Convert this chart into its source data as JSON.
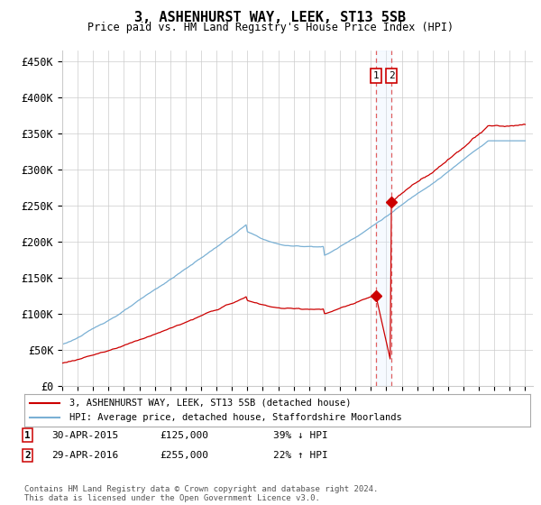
{
  "title": "3, ASHENHURST WAY, LEEK, ST13 5SB",
  "subtitle": "Price paid vs. HM Land Registry's House Price Index (HPI)",
  "ylabel_ticks": [
    "£0",
    "£50K",
    "£100K",
    "£150K",
    "£200K",
    "£250K",
    "£300K",
    "£350K",
    "£400K",
    "£450K"
  ],
  "ytick_values": [
    0,
    50000,
    100000,
    150000,
    200000,
    250000,
    300000,
    350000,
    400000,
    450000
  ],
  "ylim": [
    0,
    465000
  ],
  "xlim_start": 1995.0,
  "xlim_end": 2025.5,
  "transaction1_x": 2015.33,
  "transaction1_y": 125000,
  "transaction2_x": 2016.33,
  "transaction2_y": 255000,
  "transaction1_label": "30-APR-2015",
  "transaction1_price": "£125,000",
  "transaction1_hpi": "39% ↓ HPI",
  "transaction2_label": "29-APR-2016",
  "transaction2_price": "£255,000",
  "transaction2_hpi": "22% ↑ HPI",
  "legend_line1": "3, ASHENHURST WAY, LEEK, ST13 5SB (detached house)",
  "legend_line2": "HPI: Average price, detached house, Staffordshire Moorlands",
  "footnote": "Contains HM Land Registry data © Crown copyright and database right 2024.\nThis data is licensed under the Open Government Licence v3.0.",
  "line_color_red": "#cc0000",
  "line_color_blue": "#7ab0d4",
  "vline_color": "#e06060",
  "shade_color": "#ddeeff",
  "marker_box_color": "#cc0000",
  "background_color": "#ffffff",
  "grid_color": "#cccccc"
}
